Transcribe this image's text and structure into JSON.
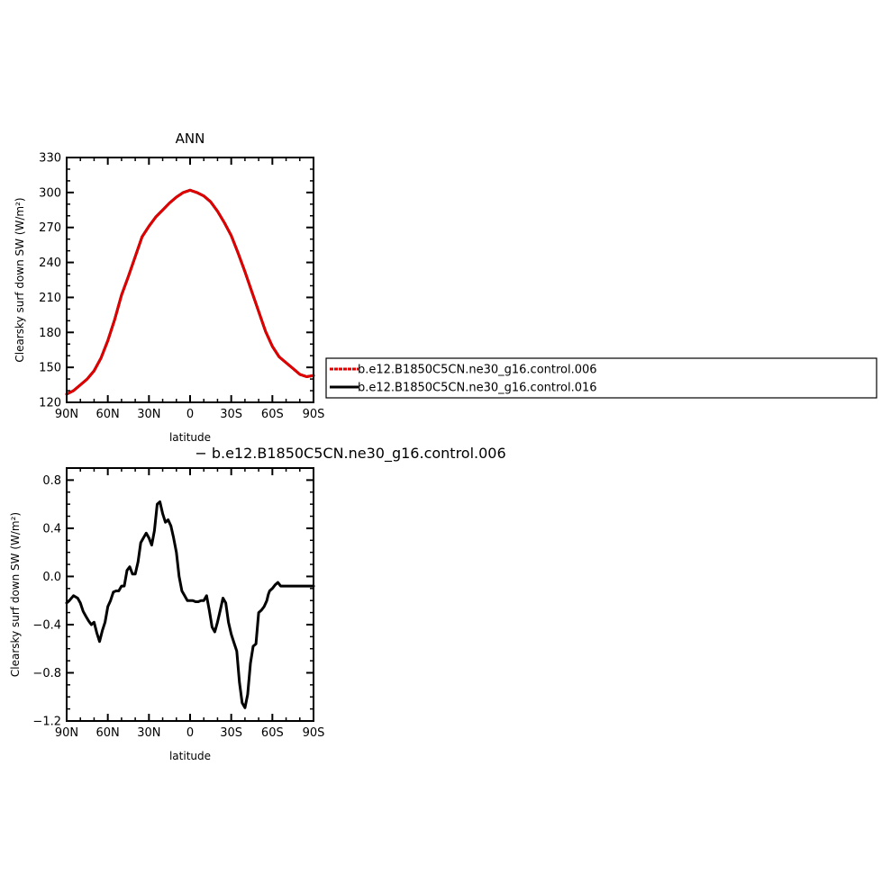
{
  "chart_data": [
    {
      "type": "line",
      "title": "ANN",
      "xlabel": "latitude",
      "ylabel": "Clearsky surf down SW (W/m²)",
      "xlim": [
        -90,
        90
      ],
      "ylim": [
        120,
        330
      ],
      "x_tick_values": [
        -90,
        -60,
        -30,
        0,
        30,
        60,
        90
      ],
      "x_tick_labels": [
        "90N",
        "60N",
        "30N",
        "0",
        "30S",
        "60S",
        "90S"
      ],
      "y_ticks": [
        120,
        150,
        180,
        210,
        240,
        270,
        300,
        330
      ],
      "legend": {
        "placement": "right",
        "entries": [
          "b.e12.B1850C5CN.ne30_g16.control.006",
          "b.e12.B1850C5CN.ne30_g16.control.016"
        ]
      },
      "series": [
        {
          "name": "b.e12.B1850C5CN.ne30_g16.control.006",
          "color": "#e00000",
          "style": "dashed",
          "x": [
            -90,
            -85,
            -80,
            -75,
            -70,
            -65,
            -60,
            -55,
            -50,
            -45,
            -40,
            -35,
            -30,
            -25,
            -20,
            -15,
            -10,
            -5,
            0,
            5,
            10,
            15,
            20,
            25,
            30,
            35,
            40,
            45,
            50,
            55,
            60,
            65,
            70,
            75,
            80,
            85,
            90
          ],
          "y": [
            127,
            130,
            135,
            140,
            147,
            158,
            173,
            191,
            212,
            228,
            245,
            262,
            271,
            279,
            285,
            291,
            296,
            300,
            302,
            300,
            297,
            292,
            284,
            274,
            263,
            248,
            232,
            215,
            198,
            181,
            168,
            159,
            154,
            149,
            144,
            142,
            143
          ]
        },
        {
          "name": "b.e12.B1850C5CN.ne30_g16.control.016",
          "color": "#000000",
          "style": "solid",
          "x": [
            -90,
            -85,
            -80,
            -75,
            -70,
            -65,
            -60,
            -55,
            -50,
            -45,
            -40,
            -35,
            -30,
            -25,
            -20,
            -15,
            -10,
            -5,
            0,
            5,
            10,
            15,
            20,
            25,
            30,
            35,
            40,
            45,
            50,
            55,
            60,
            65,
            70,
            75,
            80,
            85,
            90
          ],
          "y": [
            127,
            130,
            135,
            140,
            147,
            158,
            173,
            191,
            212,
            228,
            245,
            262,
            271,
            279,
            285,
            291,
            296,
            300,
            302,
            300,
            297,
            292,
            284,
            274,
            263,
            248,
            232,
            215,
            198,
            181,
            168,
            159,
            154,
            149,
            144,
            142,
            143
          ]
        }
      ]
    },
    {
      "type": "line",
      "title": "− b.e12.B1850C5CN.ne30_g16.control.006",
      "xlabel": "latitude",
      "ylabel": "Clearsky surf down SW (W/m²)",
      "xlim": [
        -90,
        90
      ],
      "ylim": [
        -1.2,
        0.9
      ],
      "x_tick_values": [
        -90,
        -60,
        -30,
        0,
        30,
        60,
        90
      ],
      "x_tick_labels": [
        "90N",
        "60N",
        "30N",
        "0",
        "30S",
        "60S",
        "90S"
      ],
      "y_ticks": [
        -1.2,
        -0.8,
        -0.4,
        0.0,
        0.4,
        0.8
      ],
      "y_tick_labels": [
        "−1.2",
        "−0.8",
        "−0.4",
        "0.0",
        "0.4",
        "0.8"
      ],
      "series": [
        {
          "color": "#000000",
          "style": "solid",
          "x": [
            -90,
            -88,
            -85,
            -82,
            -80,
            -78,
            -76,
            -74,
            -72,
            -70,
            -68,
            -66,
            -64,
            -62,
            -60,
            -58,
            -56,
            -54,
            -52,
            -50,
            -48,
            -46,
            -44,
            -42,
            -40,
            -38,
            -36,
            -34,
            -32,
            -30,
            -28,
            -26,
            -24,
            -22,
            -20,
            -18,
            -16,
            -14,
            -12,
            -10,
            -8,
            -6,
            -4,
            -2,
            0,
            2,
            4,
            6,
            8,
            10,
            12,
            14,
            16,
            18,
            20,
            22,
            24,
            26,
            28,
            30,
            32,
            34,
            36,
            38,
            40,
            42,
            44,
            46,
            48,
            50,
            52,
            54,
            56,
            57,
            58,
            60,
            62,
            64,
            66,
            68,
            70,
            72,
            74,
            76,
            78,
            80,
            82,
            84,
            86,
            88,
            90
          ],
          "y": [
            -0.22,
            -0.2,
            -0.16,
            -0.18,
            -0.22,
            -0.29,
            -0.33,
            -0.37,
            -0.4,
            -0.38,
            -0.47,
            -0.54,
            -0.45,
            -0.38,
            -0.25,
            -0.2,
            -0.13,
            -0.12,
            -0.12,
            -0.08,
            -0.08,
            0.05,
            0.08,
            0.02,
            0.02,
            0.12,
            0.28,
            0.32,
            0.36,
            0.32,
            0.26,
            0.38,
            0.6,
            0.62,
            0.52,
            0.45,
            0.47,
            0.42,
            0.32,
            0.2,
            0.0,
            -0.12,
            -0.16,
            -0.2,
            -0.2,
            -0.2,
            -0.21,
            -0.21,
            -0.2,
            -0.2,
            -0.16,
            -0.28,
            -0.42,
            -0.46,
            -0.38,
            -0.28,
            -0.18,
            -0.22,
            -0.38,
            -0.48,
            -0.55,
            -0.62,
            -0.88,
            -1.05,
            -1.09,
            -0.98,
            -0.72,
            -0.58,
            -0.56,
            -0.3,
            -0.28,
            -0.25,
            -0.2,
            -0.15,
            -0.12,
            -0.1,
            -0.07,
            -0.05,
            -0.08,
            -0.08,
            -0.08,
            -0.08,
            -0.08,
            -0.08,
            -0.08,
            -0.08,
            -0.08,
            -0.08,
            -0.08,
            -0.08,
            -0.08
          ]
        }
      ]
    }
  ]
}
